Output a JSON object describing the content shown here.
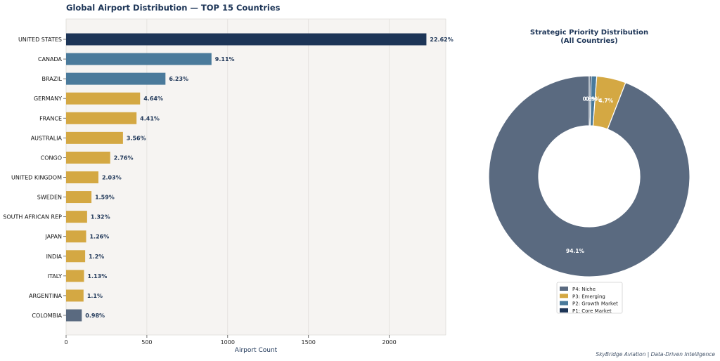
{
  "colors": {
    "navy": "#1d3557",
    "steel": "#4a7a9b",
    "gold": "#d4a843",
    "slate": "#5a6a80",
    "panel_bg": "#f6f4f2",
    "grid": "#e2dfdb"
  },
  "chart_data": [
    {
      "type": "bar",
      "orientation": "horizontal",
      "title": "Global Airport Distribution — TOP 15 Countries",
      "xlabel": "Airport Count",
      "xlim": [
        0,
        2350
      ],
      "xticks": [
        0,
        500,
        1000,
        1500,
        2000
      ],
      "grid": true,
      "categories": [
        "UNITED STATES",
        "CANADA",
        "BRAZIL",
        "GERMANY",
        "FRANCE",
        "AUSTRALIA",
        "CONGO",
        "UNITED KINGDOM",
        "SWEDEN",
        "SOUTH AFRICAN REP",
        "JAPAN",
        "INDIA",
        "ITALY",
        "ARGENTINA",
        "COLOMBIA"
      ],
      "values": [
        2230,
        900,
        615,
        458,
        436,
        352,
        273,
        200,
        157,
        130,
        124,
        118,
        111,
        108,
        97
      ],
      "labels": [
        "22.62%",
        "9.11%",
        "6.23%",
        "4.64%",
        "4.41%",
        "3.56%",
        "2.76%",
        "2.03%",
        "1.59%",
        "1.32%",
        "1.26%",
        "1.2%",
        "1.13%",
        "1.1%",
        "0.98%"
      ],
      "bar_colors": [
        "#1d3557",
        "#4a7a9b",
        "#4a7a9b",
        "#d4a843",
        "#d4a843",
        "#d4a843",
        "#d4a843",
        "#d4a843",
        "#d4a843",
        "#d4a843",
        "#d4a843",
        "#d4a843",
        "#d4a843",
        "#d4a843",
        "#5a6a80"
      ]
    },
    {
      "type": "pie",
      "style": "donut",
      "title_line1": "Strategic Priority Distribution",
      "title_line2": "(All Countries)",
      "legend_position": "bottom",
      "slices": [
        {
          "name": "P1: Core Market",
          "value": 0.3,
          "label": "0.3%",
          "color": "#1d3557"
        },
        {
          "name": "P2: Growth Market",
          "value": 0.9,
          "label": "0.9%",
          "color": "#4a7a9b"
        },
        {
          "name": "P3: Emerging",
          "value": 4.7,
          "label": "4.7%",
          "color": "#d4a843"
        },
        {
          "name": "P4: Niche",
          "value": 94.1,
          "label": "94.1%",
          "color": "#5a6a80"
        }
      ],
      "legend_order": [
        "P4: Niche",
        "P3: Emerging",
        "P2: Growth Market",
        "P1: Core Market"
      ]
    }
  ],
  "footer": "SkyBridge Aviation | Data-Driven Intelligence"
}
